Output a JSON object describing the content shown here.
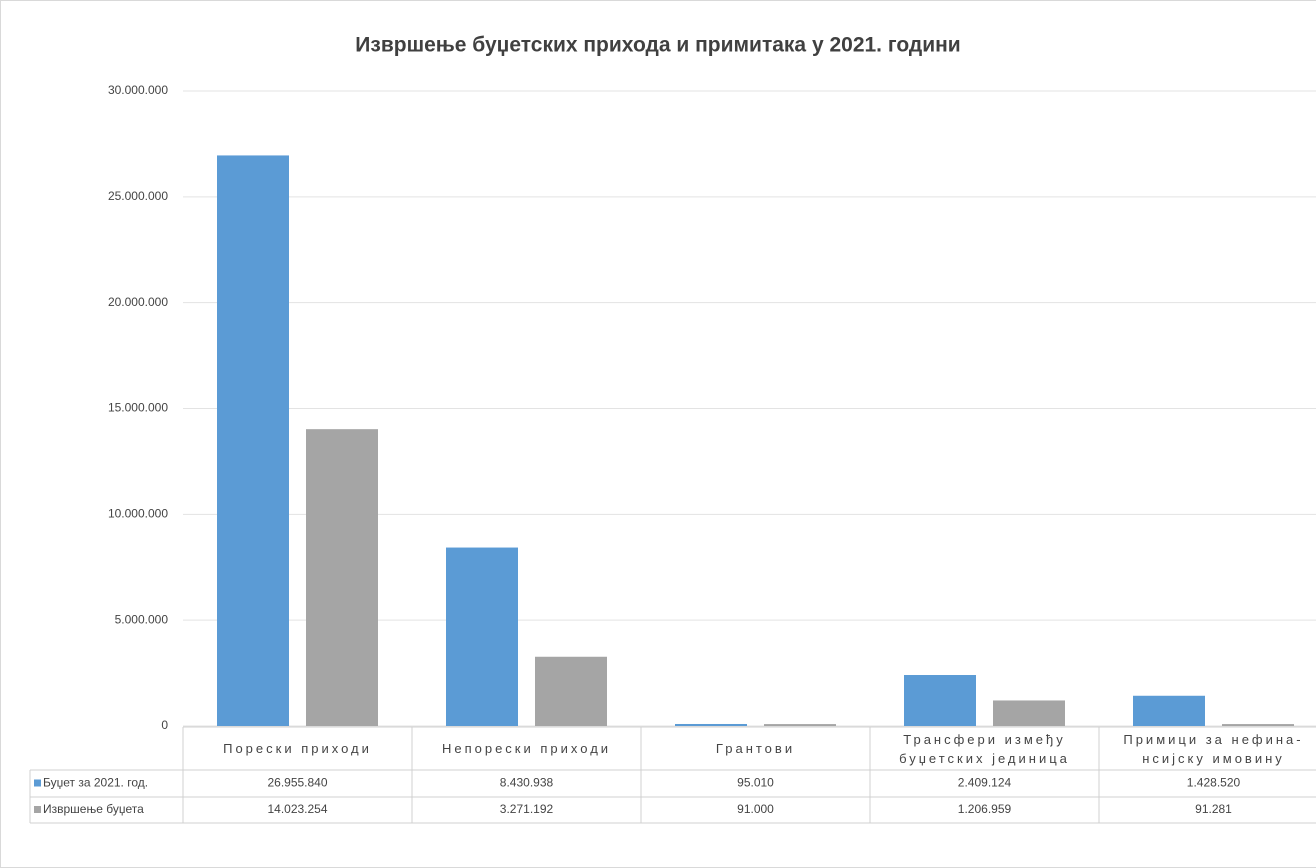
{
  "chart_data": {
    "type": "bar",
    "title": "Извршење буџетских прихода и примитака у 2021. години",
    "categories": [
      "Порески приходи",
      "Непорески приходи",
      "Грантови",
      "Трансфери између буџетских јединица",
      "Примици за нефина-нсијску имовину"
    ],
    "series": [
      {
        "name": "Буџет за 2021. год.",
        "color": "#5b9bd5",
        "values": [
          26955840,
          8430938,
          95010,
          2409124,
          1428520
        ],
        "value_labels": [
          "26.955.840",
          "8.430.938",
          "95.010",
          "2.409.124",
          "1.428.520"
        ]
      },
      {
        "name": "Извршење буџета",
        "color": "#a5a5a5",
        "values": [
          14023254,
          3271192,
          91000,
          1206959,
          91281
        ],
        "value_labels": [
          "14.023.254",
          "3.271.192",
          "91.000",
          "1.206.959",
          "91.281"
        ]
      }
    ],
    "ylim": [
      0,
      30000000
    ],
    "yticks": [
      0,
      {
        "value": 5000000,
        "label": "5.000.000"
      },
      {
        "value": 10000000,
        "label": "10.000.000"
      },
      {
        "value": 15000000,
        "label": "15.000.000"
      },
      {
        "value": 20000000,
        "label": "20.000.000"
      },
      {
        "value": 25000000,
        "label": "25.000.000"
      },
      {
        "value": 30000000,
        "label": "30.000.000"
      }
    ],
    "grid": true,
    "data_table": true
  }
}
